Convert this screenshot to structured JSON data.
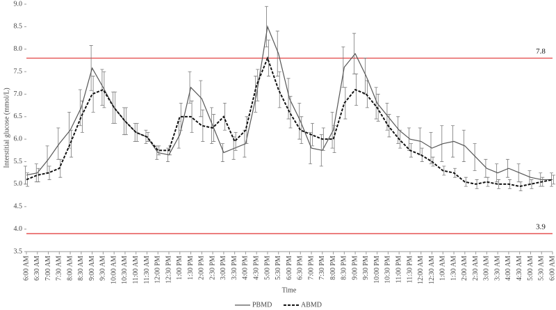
{
  "chart_data": {
    "type": "line",
    "y_label": "Interstitial glucose (mmol/L)",
    "x_label": "Time",
    "categories": [
      "6:00 AM",
      "6:30 AM",
      "7:00 AM",
      "7:30 AM",
      "8:00 AM",
      "8:30 AM",
      "9:00 AM",
      "9:30 AM",
      "10:00 AM",
      "10:30 AM",
      "11:00 AM",
      "11:30 AM",
      "12:00 PM",
      "12:30 PM",
      "1:00 PM",
      "1:30 PM",
      "2:00 PM",
      "2:30 PM",
      "3:00 PM",
      "3:30 PM",
      "4:00 PM",
      "4:30 PM",
      "5:00 PM",
      "5:30 PM",
      "6:00 PM",
      "6:30 PM",
      "7:00 PM",
      "7:30 PM",
      "8:00 PM",
      "8:30 PM",
      "9:00 PM",
      "9:30 PM",
      "10:00 PM",
      "10:30 PM",
      "11:00 PM",
      "11:30 PM",
      "12:00 AM",
      "12:30 AM",
      "1:00 AM",
      "1:30 AM",
      "2:00 AM",
      "2:30 AM",
      "3:00 AM",
      "3:30 AM",
      "4:00 AM",
      "4:30 AM",
      "5:00 AM",
      "5:30 AM",
      "6:00 AM"
    ],
    "series": [
      {
        "name": "PBMD",
        "color": "#555555",
        "dash": "solid",
        "values": [
          5.2,
          5.25,
          5.55,
          5.9,
          6.2,
          6.7,
          7.58,
          7.15,
          6.7,
          6.4,
          6.15,
          6.05,
          5.7,
          5.65,
          6.1,
          7.15,
          6.9,
          6.3,
          5.7,
          5.8,
          5.9,
          7.0,
          8.5,
          7.9,
          6.9,
          6.4,
          5.8,
          5.75,
          6.2,
          7.6,
          7.9,
          7.4,
          6.8,
          6.5,
          6.2,
          6.0,
          5.95,
          5.8,
          5.9,
          5.95,
          5.85,
          5.6,
          5.35,
          5.25,
          5.35,
          5.25,
          5.15,
          5.1,
          5.1
        ],
        "errors": [
          0.2,
          0.2,
          0.3,
          0.35,
          0.4,
          0.4,
          0.5,
          0.4,
          0.35,
          0.3,
          0.2,
          0.15,
          0.15,
          0.15,
          0.3,
          0.35,
          0.4,
          0.4,
          0.2,
          0.25,
          0.3,
          0.4,
          0.45,
          0.5,
          0.45,
          0.4,
          0.35,
          0.35,
          0.4,
          0.45,
          0.45,
          0.4,
          0.35,
          0.3,
          0.3,
          0.25,
          0.3,
          0.35,
          0.4,
          0.35,
          0.35,
          0.3,
          0.2,
          0.2,
          0.2,
          0.2,
          0.15,
          0.15,
          0.15
        ]
      },
      {
        "name": "ABMD",
        "color": "#111111",
        "dash": "dashed",
        "values": [
          5.1,
          5.2,
          5.25,
          5.35,
          5.9,
          6.5,
          7.0,
          7.1,
          6.7,
          6.4,
          6.15,
          6.05,
          5.75,
          5.75,
          6.5,
          6.5,
          6.3,
          6.25,
          6.5,
          5.95,
          6.2,
          7.2,
          7.8,
          7.1,
          6.6,
          6.2,
          6.1,
          6.0,
          6.0,
          6.8,
          7.1,
          7.0,
          6.7,
          6.3,
          6.0,
          5.75,
          5.65,
          5.5,
          5.3,
          5.25,
          5.05,
          5.0,
          5.05,
          5.0,
          5.0,
          4.95,
          5.0,
          5.05,
          5.1
        ],
        "errors": [
          0.15,
          0.15,
          0.15,
          0.2,
          0.3,
          0.35,
          0.4,
          0.4,
          0.35,
          0.3,
          0.2,
          0.1,
          0.1,
          0.1,
          0.3,
          0.35,
          0.35,
          0.3,
          0.3,
          0.2,
          0.3,
          0.35,
          0.4,
          0.4,
          0.35,
          0.3,
          0.25,
          0.25,
          0.3,
          0.35,
          0.35,
          0.3,
          0.3,
          0.25,
          0.2,
          0.15,
          0.15,
          0.1,
          0.1,
          0.1,
          0.1,
          0.1,
          0.1,
          0.1,
          0.1,
          0.1,
          0.1,
          0.1,
          0.1
        ]
      }
    ],
    "reference_lines": [
      7.8,
      3.9
    ],
    "reference_color": "#e03030",
    "ylim": [
      3.5,
      9.0
    ],
    "yticks": [
      3.5,
      {
        "value": 4,
        "label": "4.0"
      },
      4.5,
      {
        "value": 5,
        "label": "5.0"
      },
      5.5,
      {
        "value": 6,
        "label": "6.0"
      },
      6.5,
      {
        "value": 7,
        "label": "7.0"
      },
      7.5,
      {
        "value": 8,
        "label": "8.0"
      },
      8.5,
      {
        "value": 9,
        "label": "9.0"
      }
    ],
    "legend": "bottom"
  }
}
